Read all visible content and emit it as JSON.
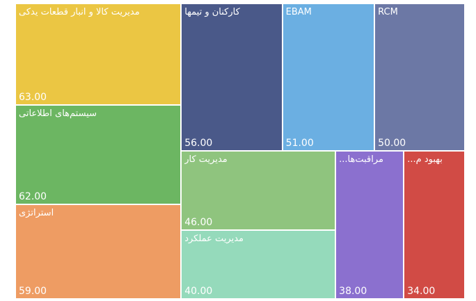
{
  "chart_data": {
    "type": "treemap",
    "categories": [
      "مدیریت کالا و انبار قطعات یدکی",
      "سیستم‌های اطلاعاتی",
      "استراتژی",
      "کارکنان و تیمها",
      "EBAM",
      "RCM",
      "مدیریت کار",
      "مدیریت عملکرد",
      "مراقبت‌ها...",
      "بهبود م..."
    ],
    "values": [
      63,
      62,
      59,
      56,
      51,
      50,
      46,
      40,
      38,
      34
    ],
    "value_labels": [
      "63.00",
      "62.00",
      "59.00",
      "56.00",
      "51.00",
      "50.00",
      "46.00",
      "40.00",
      "38.00",
      "34.00"
    ],
    "colors": [
      "#ebc643",
      "#6cb662",
      "#ee9c63",
      "#4a5989",
      "#6bafe2",
      "#6c78a5",
      "#8fc47e",
      "#95dabb",
      "#8b70cf",
      "#d14b45"
    ]
  }
}
